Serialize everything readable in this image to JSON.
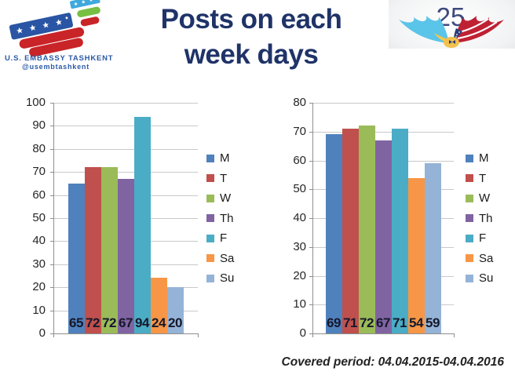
{
  "slide": {
    "title_lines": [
      "Posts on each",
      "week days"
    ]
  },
  "embassy_logo": {
    "line1": "U.S. EMBASSY TASHKENT",
    "line2": "@usembtashkent"
  },
  "anniversary_logo": {
    "number": "25"
  },
  "footer": {
    "covered_period": "Covered period: 04.04.2015-04.04.2016"
  },
  "palette": {
    "title_navy": "#1F3368",
    "gridline": "#C9C9C9",
    "axis": "#8E8E8E",
    "data_label": "#15182B"
  },
  "chart_data": [
    {
      "type": "bar",
      "title": "",
      "categories": [
        "M",
        "T",
        "W",
        "Th",
        "F",
        "Sa",
        "Su"
      ],
      "values": [
        65,
        72,
        72,
        67,
        94,
        24,
        20
      ],
      "data_labels": [
        "65",
        "72",
        "72",
        "67",
        "94",
        "24",
        "20"
      ],
      "ylim": [
        0,
        100
      ],
      "ytick_step": 10,
      "grid": true,
      "legend_position": "right",
      "colors": [
        "#4F81BD",
        "#C0504D",
        "#9BBB59",
        "#8064A2",
        "#4BACC6",
        "#F79646",
        "#95B3D7"
      ]
    },
    {
      "type": "bar",
      "title": "",
      "categories": [
        "M",
        "T",
        "W",
        "Th",
        "F",
        "Sa",
        "Su"
      ],
      "values": [
        69,
        71,
        72,
        67,
        71,
        54,
        59
      ],
      "data_labels": [
        "69",
        "71",
        "72",
        "67",
        "71",
        "54",
        "59"
      ],
      "ylim": [
        0,
        80
      ],
      "ytick_step": 10,
      "grid": true,
      "legend_position": "right",
      "colors": [
        "#4F81BD",
        "#C0504D",
        "#9BBB59",
        "#8064A2",
        "#4BACC6",
        "#F79646",
        "#95B3D7"
      ]
    }
  ]
}
